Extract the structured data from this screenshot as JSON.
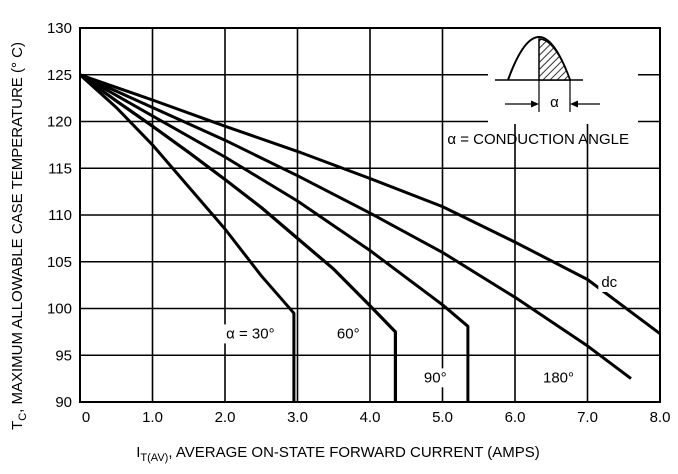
{
  "chart_data": {
    "type": "line",
    "title": "",
    "xlabel": "I",
    "xlabel_sub": "T(AV)",
    "xlabel_rest": ", AVERAGE ON-STATE FORWARD CURRENT (AMPS)",
    "ylabel": "T",
    "ylabel_sub": "C",
    "ylabel_rest": ", MAXIMUM ALLOWABLE CASE TEMPERATURE (° C)",
    "xlim": [
      0,
      8
    ],
    "ylim": [
      90,
      130
    ],
    "x_ticks": [
      "0",
      "1.0",
      "2.0",
      "3.0",
      "4.0",
      "5.0",
      "6.0",
      "7.0",
      "8.0"
    ],
    "y_ticks": [
      "90",
      "95",
      "100",
      "105",
      "110",
      "115",
      "120",
      "125",
      "130"
    ],
    "grid": true,
    "legend": "none",
    "inset_label": "α = CONDUCTION ANGLE",
    "inset_symbol": "α",
    "series": [
      {
        "name": "α = 30°",
        "x": [
          0,
          0.5,
          1.0,
          1.5,
          2.0,
          2.5,
          2.95,
          2.95
        ],
        "y": [
          125,
          121.5,
          117.5,
          113,
          108.5,
          103.5,
          99.5,
          90
        ]
      },
      {
        "name": "60°",
        "x": [
          0,
          0.5,
          1.0,
          1.5,
          2.0,
          2.5,
          3.0,
          3.5,
          4.0,
          4.35,
          4.35
        ],
        "y": [
          125,
          122.2,
          119.5,
          116.7,
          113.8,
          110.8,
          107.5,
          104.2,
          100.3,
          97.5,
          90
        ]
      },
      {
        "name": "90°",
        "x": [
          0,
          1.0,
          2.0,
          3.0,
          4.0,
          5.0,
          5.35,
          5.35
        ],
        "y": [
          125,
          120.6,
          116.2,
          111.5,
          106.2,
          100.4,
          98.1,
          90
        ]
      },
      {
        "name": "180°",
        "x": [
          0,
          1.0,
          2.0,
          3.0,
          4.0,
          5.0,
          6.0,
          7.0,
          7.6
        ],
        "y": [
          125,
          121.5,
          118,
          114.2,
          110.2,
          106,
          101.2,
          96,
          92.5
        ]
      },
      {
        "name": "dc",
        "x": [
          0,
          1.0,
          2.0,
          3.0,
          4.0,
          5.0,
          6.0,
          7.0,
          8.0
        ],
        "y": [
          125,
          122.3,
          119.5,
          116.8,
          113.9,
          110.9,
          107.1,
          103.1,
          97.3
        ]
      }
    ],
    "annotations": [
      {
        "text": "α = 30°",
        "x": 2.35,
        "y": 96.8
      },
      {
        "text": "60°",
        "x": 3.7,
        "y": 96.8
      },
      {
        "text": "90°",
        "x": 4.9,
        "y": 92.1
      },
      {
        "text": "180°",
        "x": 6.6,
        "y": 92.1
      },
      {
        "text": "dc",
        "x": 7.3,
        "y": 102.3
      }
    ]
  }
}
